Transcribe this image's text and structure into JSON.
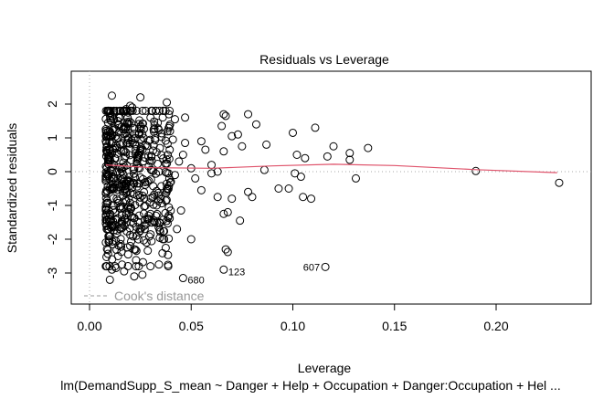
{
  "chart_data": {
    "type": "scatter",
    "title": "Residuals vs Leverage",
    "xlabel": "Leverage",
    "ylabel": "Standardized residuals",
    "subtitle": "lm(DemandSupp_S_mean ~ Danger + Help + Occupation + Danger:Occupation + Hel ...",
    "xlim": [
      -0.009,
      0.247
    ],
    "ylim": [
      -3.95,
      2.9
    ],
    "x_ticks": [
      "0.00",
      "0.05",
      "0.10",
      "0.15",
      "0.20"
    ],
    "x_tick_values": [
      0.0,
      0.05,
      0.1,
      0.15,
      0.2
    ],
    "y_ticks": [
      "2",
      "1",
      "0",
      "-1",
      "-2",
      "-3"
    ],
    "y_tick_values": [
      2,
      1,
      0,
      -1,
      -2,
      -3
    ],
    "legend": {
      "label": "Cook's distance",
      "position": "bottom-left"
    },
    "smoother_color": "#DF536B",
    "smoother": [
      [
        0.008,
        0.2
      ],
      [
        0.03,
        0.12
      ],
      [
        0.06,
        0.1
      ],
      [
        0.09,
        0.17
      ],
      [
        0.12,
        0.22
      ],
      [
        0.15,
        0.18
      ],
      [
        0.19,
        0.06
      ],
      [
        0.23,
        -0.03
      ]
    ],
    "labeled_points": [
      {
        "label": "680",
        "x": 0.046,
        "y": -3.15
      },
      {
        "label": "123",
        "x": 0.066,
        "y": -2.9
      },
      {
        "label": "607",
        "x": 0.116,
        "y": -2.82
      }
    ],
    "points": [
      [
        0.011,
        2.25
      ],
      [
        0.025,
        2.2
      ],
      [
        0.038,
        2.05
      ],
      [
        0.018,
        1.85
      ],
      [
        0.021,
        1.9
      ],
      [
        0.02,
        1.95
      ],
      [
        0.019,
        1.75
      ],
      [
        0.015,
        1.6
      ],
      [
        0.03,
        1.6
      ],
      [
        0.012,
        1.55
      ],
      [
        0.039,
        1.7
      ],
      [
        0.042,
        1.55
      ],
      [
        0.047,
        1.6
      ],
      [
        0.066,
        1.7
      ],
      [
        0.067,
        1.65
      ],
      [
        0.078,
        1.7
      ],
      [
        0.082,
        1.4
      ],
      [
        0.065,
        1.35
      ],
      [
        0.07,
        1.05
      ],
      [
        0.073,
        1.1
      ],
      [
        0.1,
        1.15
      ],
      [
        0.111,
        1.3
      ],
      [
        0.12,
        0.75
      ],
      [
        0.128,
        0.55
      ],
      [
        0.128,
        0.35
      ],
      [
        0.137,
        0.7
      ],
      [
        0.102,
        0.5
      ],
      [
        0.106,
        0.4
      ],
      [
        0.117,
        0.45
      ],
      [
        0.087,
        0.8
      ],
      [
        0.131,
        -0.2
      ],
      [
        0.105,
        -0.75
      ],
      [
        0.109,
        -0.8
      ],
      [
        0.098,
        -0.5
      ],
      [
        0.093,
        -0.5
      ],
      [
        0.086,
        0.05
      ],
      [
        0.19,
        0.02
      ],
      [
        0.231,
        -0.33
      ],
      [
        0.101,
        -0.05
      ],
      [
        0.104,
        -0.15
      ],
      [
        0.075,
        0.75
      ],
      [
        0.066,
        0.6
      ],
      [
        0.06,
        0.2
      ],
      [
        0.055,
        0.9
      ],
      [
        0.047,
        0.85
      ],
      [
        0.05,
        0.1
      ],
      [
        0.052,
        -0.2
      ],
      [
        0.055,
        -0.55
      ],
      [
        0.063,
        -0.75
      ],
      [
        0.068,
        -1.2
      ],
      [
        0.07,
        -0.8
      ],
      [
        0.066,
        -1.25
      ],
      [
        0.074,
        -1.45
      ],
      [
        0.078,
        -0.6
      ],
      [
        0.08,
        -0.75
      ],
      [
        0.063,
        0.0
      ],
      [
        0.057,
        0.65
      ],
      [
        0.06,
        -0.05
      ],
      [
        0.045,
        -1.15
      ],
      [
        0.05,
        -2.0
      ],
      [
        0.067,
        -2.3
      ],
      [
        0.068,
        -2.38
      ],
      [
        0.043,
        -1.7
      ],
      [
        0.039,
        -1.3
      ],
      [
        0.036,
        -2.0
      ],
      [
        0.034,
        -1.65
      ],
      [
        0.032,
        -1.5
      ],
      [
        0.028,
        -2.1
      ],
      [
        0.026,
        -3.05
      ],
      [
        0.022,
        -3.1
      ],
      [
        0.017,
        -2.95
      ],
      [
        0.016,
        -2.75
      ],
      [
        0.013,
        -2.85
      ],
      [
        0.011,
        -2.9
      ],
      [
        0.01,
        -3.2
      ],
      [
        0.014,
        -2.5
      ],
      [
        0.019,
        -2.45
      ],
      [
        0.022,
        -2.3
      ],
      [
        0.02,
        -2.2
      ],
      [
        0.023,
        -1.9
      ],
      [
        0.027,
        -1.6
      ],
      [
        0.03,
        -1.25
      ],
      [
        0.033,
        -1.0
      ],
      [
        0.035,
        -0.8
      ],
      [
        0.038,
        -0.5
      ],
      [
        0.04,
        -0.3
      ],
      [
        0.042,
        -0.1
      ],
      [
        0.044,
        0.3
      ],
      [
        0.046,
        0.5
      ],
      [
        0.041,
        0.95
      ]
    ],
    "dense_cluster": {
      "x_range": [
        0.008,
        0.04
      ],
      "y_range": [
        -2.8,
        1.8
      ],
      "count": 520
    }
  }
}
